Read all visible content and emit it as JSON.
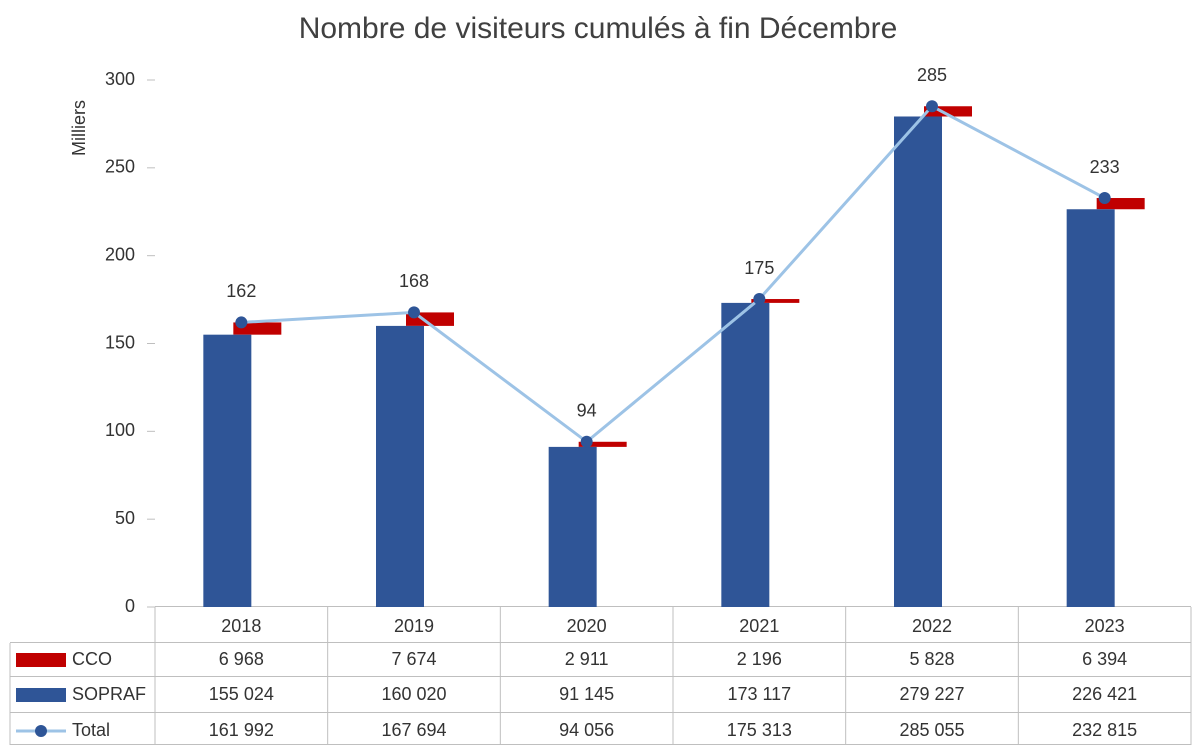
{
  "chart_data": {
    "type": "bar",
    "title": "Nombre de visiteurs cumulés à fin Décembre",
    "y_label": "Milliers",
    "categories": [
      "2018",
      "2019",
      "2020",
      "2021",
      "2022",
      "2023"
    ],
    "series": [
      {
        "name": "CCO",
        "color": "#c00000",
        "values": [
          6.968,
          7.674,
          2.911,
          2.196,
          5.828,
          6.394
        ],
        "value_labels": [
          "6 968",
          "7 674",
          "2 911",
          "2 196",
          "5 828",
          "6 394"
        ]
      },
      {
        "name": "SOPRAF",
        "color": "#2f5597",
        "values": [
          155.024,
          160.02,
          91.145,
          173.117,
          279.227,
          226.421
        ],
        "value_labels": [
          "155 024",
          "160 020",
          "91 145",
          "173 117",
          "279 227",
          "226 421"
        ]
      },
      {
        "name": "Total",
        "type": "line",
        "color": "#9dc3e6",
        "marker_color": "#2e5597",
        "values": [
          161.992,
          167.694,
          94.056,
          175.313,
          285.055,
          232.815
        ],
        "value_labels": [
          "161 992",
          "167 694",
          "94 056",
          "175 313",
          "285 055",
          "232 815"
        ],
        "point_labels": [
          "162",
          "168",
          "94",
          "175",
          "285",
          "233"
        ]
      }
    ],
    "ylim": [
      0,
      300
    ],
    "yticks": [
      0,
      50,
      100,
      150,
      200,
      250,
      300
    ],
    "grid": false
  }
}
